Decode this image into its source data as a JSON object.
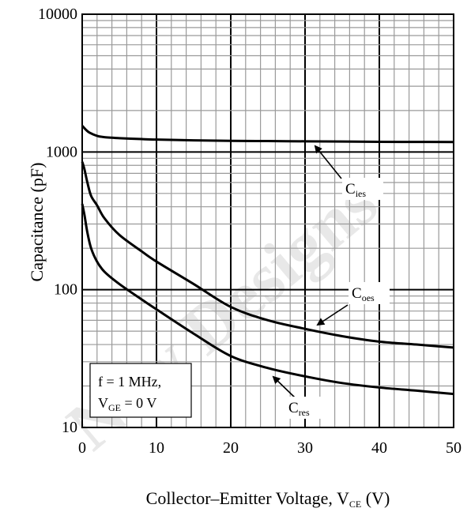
{
  "chart_data": {
    "type": "line",
    "title": "",
    "xlabel": "Collector–Emitter Voltage, V",
    "xlabel_sub": "CE",
    "xlabel_unit": " (V)",
    "ylabel": "Capacitance (pF)",
    "xlim": [
      0,
      50
    ],
    "ylim": [
      10,
      10000
    ],
    "yscale": "log",
    "grid": true,
    "xticks": [
      "0",
      "10",
      "20",
      "30",
      "40",
      "50"
    ],
    "yticks": [
      "10",
      "100",
      "1000",
      "10000"
    ],
    "series": [
      {
        "name": "Cies",
        "label_main": "C",
        "label_sub": "ies",
        "x": [
          0,
          0.5,
          1,
          2,
          3,
          5,
          8,
          10,
          15,
          20,
          25,
          30,
          35,
          40,
          45,
          50
        ],
        "y": [
          1550,
          1450,
          1380,
          1310,
          1280,
          1260,
          1240,
          1230,
          1215,
          1205,
          1200,
          1195,
          1190,
          1185,
          1183,
          1180
        ]
      },
      {
        "name": "Coes",
        "label_main": "C",
        "label_sub": "oes",
        "x": [
          0,
          0.3,
          0.7,
          1.2,
          2,
          3,
          5,
          8,
          10,
          15,
          20,
          25,
          30,
          35,
          40,
          45,
          50
        ],
        "y": [
          850,
          750,
          600,
          480,
          410,
          330,
          250,
          190,
          160,
          110,
          75,
          60,
          52,
          46,
          42,
          40,
          38
        ]
      },
      {
        "name": "Cres",
        "label_main": "C",
        "label_sub": "res",
        "x": [
          0,
          0.3,
          0.7,
          1.2,
          2,
          3,
          5,
          8,
          10,
          15,
          20,
          25,
          30,
          35,
          40,
          45,
          50
        ],
        "y": [
          420,
          350,
          260,
          200,
          160,
          135,
          110,
          85,
          72,
          48,
          33,
          27,
          23.5,
          21,
          19.5,
          18.5,
          17.5
        ]
      }
    ],
    "annotation": {
      "line1": "f = 1 MHz,",
      "line2_main": "V",
      "line2_sub": "GE",
      "line2_rest": " = 0 V"
    },
    "watermark": "New Designs"
  }
}
